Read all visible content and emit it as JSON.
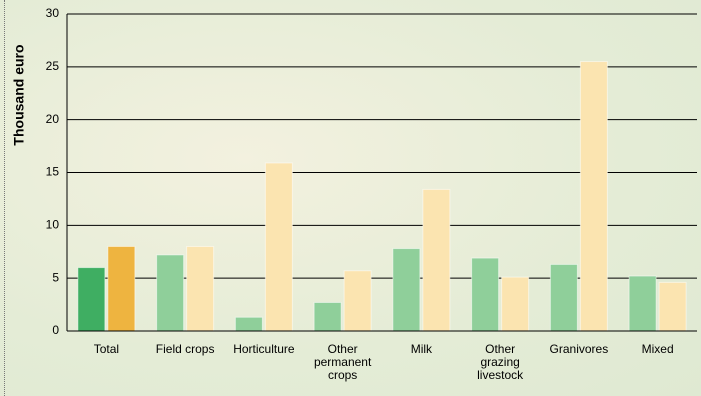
{
  "chart_data": {
    "type": "bar",
    "y_label": "Thousand euro",
    "categories": [
      "Total",
      "Field crops",
      "Horticulture",
      "Other permanent crops",
      "Milk",
      "Other grazing livestock",
      "Granivores",
      "Mixed"
    ],
    "series": [
      {
        "color": "#8fcf9a",
        "colors": [
          "#3fae62",
          "#8fcf9a",
          "#8fcf9a",
          "#8fcf9a",
          "#8fcf9a",
          "#8fcf9a",
          "#8fcf9a",
          "#8fcf9a"
        ],
        "values": [
          6.0,
          7.2,
          1.3,
          2.7,
          7.8,
          6.9,
          6.3,
          5.2
        ]
      },
      {
        "color": "#fbe4b0",
        "colors": [
          "#eeb440",
          "#fbe4b0",
          "#fbe4b0",
          "#fbe4b0",
          "#fbe4b0",
          "#fbe4b0",
          "#fbe4b0",
          "#fbe4b0"
        ],
        "values": [
          8.0,
          8.0,
          15.9,
          5.7,
          13.4,
          5.1,
          25.5,
          4.6
        ]
      }
    ],
    "ylim": [
      0,
      30
    ],
    "yticks": [
      0,
      5,
      10,
      15,
      20,
      25,
      30
    ],
    "grid": true
  }
}
